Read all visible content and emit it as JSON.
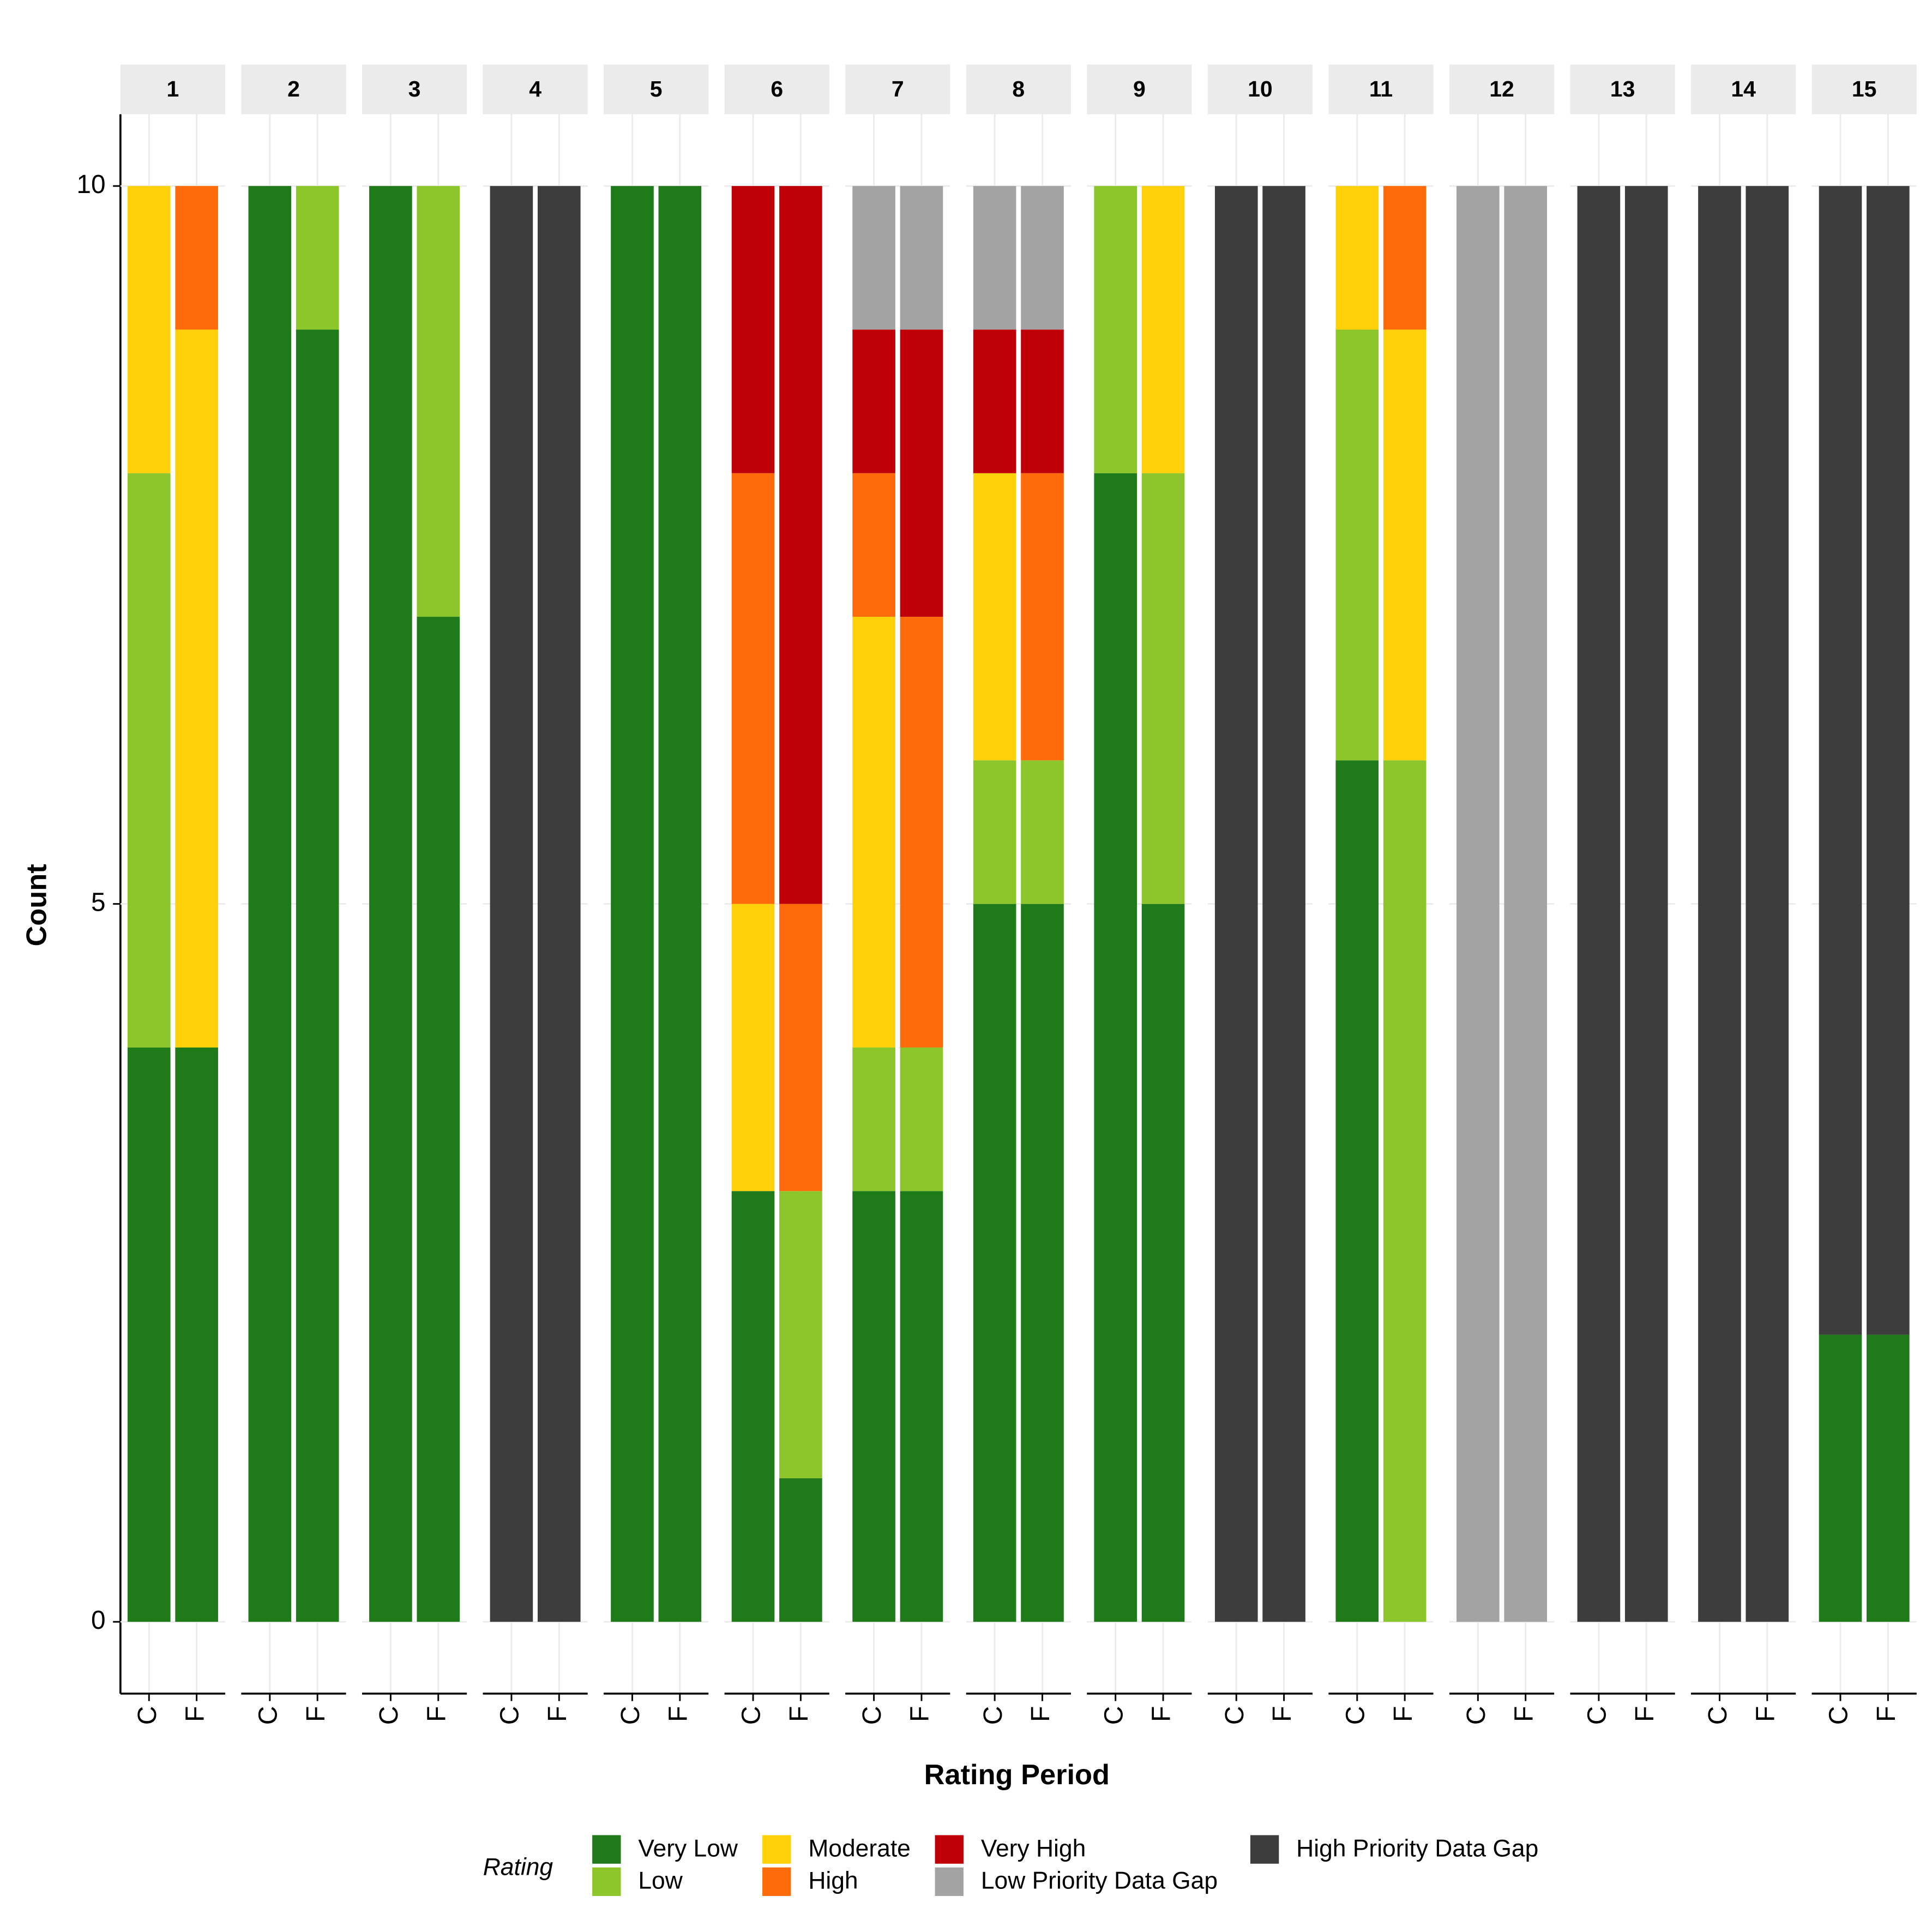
{
  "chart_data": {
    "type": "bar",
    "stacked": true,
    "facets": [
      "1",
      "2",
      "3",
      "4",
      "5",
      "6",
      "7",
      "8",
      "9",
      "10",
      "11",
      "12",
      "13",
      "14",
      "15"
    ],
    "categories": [
      "C",
      "F"
    ],
    "x_label": "Rating Period",
    "y_label": "Count",
    "legend_title": "Rating",
    "ylim": [
      -0.5,
      10.5
    ],
    "yticks": [
      0,
      5,
      10
    ],
    "grid": true,
    "legend_position": "bottom",
    "series": [
      {
        "name": "Very Low",
        "color": "#1f7a1a",
        "values": [
          [
            4,
            4
          ],
          [
            10,
            9
          ],
          [
            10,
            7
          ],
          [
            0,
            0
          ],
          [
            10,
            10
          ],
          [
            3,
            1
          ],
          [
            3,
            3
          ],
          [
            5,
            5
          ],
          [
            8,
            5
          ],
          [
            0,
            0
          ],
          [
            6,
            0
          ],
          [
            0,
            0
          ],
          [
            0,
            0
          ],
          [
            0,
            0
          ],
          [
            2,
            2
          ]
        ]
      },
      {
        "name": "Low",
        "color": "#8cc62a",
        "values": [
          [
            4,
            0
          ],
          [
            0,
            1
          ],
          [
            0,
            3
          ],
          [
            0,
            0
          ],
          [
            0,
            0
          ],
          [
            0,
            2
          ],
          [
            1,
            1
          ],
          [
            1,
            1
          ],
          [
            2,
            3
          ],
          [
            0,
            0
          ],
          [
            3,
            6
          ],
          [
            0,
            0
          ],
          [
            0,
            0
          ],
          [
            0,
            0
          ],
          [
            0,
            0
          ]
        ]
      },
      {
        "name": "Moderate",
        "color": "#ffd10a",
        "values": [
          [
            2,
            5
          ],
          [
            0,
            0
          ],
          [
            0,
            0
          ],
          [
            0,
            0
          ],
          [
            0,
            0
          ],
          [
            2,
            0
          ],
          [
            3,
            0
          ],
          [
            2,
            0
          ],
          [
            0,
            2
          ],
          [
            0,
            0
          ],
          [
            1,
            3
          ],
          [
            0,
            0
          ],
          [
            0,
            0
          ],
          [
            0,
            0
          ],
          [
            0,
            0
          ]
        ]
      },
      {
        "name": "High",
        "color": "#ff6a0a",
        "values": [
          [
            0,
            1
          ],
          [
            0,
            0
          ],
          [
            0,
            0
          ],
          [
            0,
            0
          ],
          [
            0,
            0
          ],
          [
            3,
            2
          ],
          [
            1,
            3
          ],
          [
            0,
            2
          ],
          [
            0,
            0
          ],
          [
            0,
            0
          ],
          [
            0,
            1
          ],
          [
            0,
            0
          ],
          [
            0,
            0
          ],
          [
            0,
            0
          ],
          [
            0,
            0
          ]
        ]
      },
      {
        "name": "Very High",
        "color": "#c00008",
        "values": [
          [
            0,
            0
          ],
          [
            0,
            0
          ],
          [
            0,
            0
          ],
          [
            0,
            0
          ],
          [
            0,
            0
          ],
          [
            2,
            5
          ],
          [
            1,
            2
          ],
          [
            1,
            1
          ],
          [
            0,
            0
          ],
          [
            0,
            0
          ],
          [
            0,
            0
          ],
          [
            0,
            0
          ],
          [
            0,
            0
          ],
          [
            0,
            0
          ],
          [
            0,
            0
          ]
        ]
      },
      {
        "name": "Low Priority Data Gap",
        "color": "#a3a3a3",
        "values": [
          [
            0,
            0
          ],
          [
            0,
            0
          ],
          [
            0,
            0
          ],
          [
            0,
            0
          ],
          [
            0,
            0
          ],
          [
            0,
            0
          ],
          [
            1,
            1
          ],
          [
            1,
            1
          ],
          [
            0,
            0
          ],
          [
            0,
            0
          ],
          [
            0,
            0
          ],
          [
            10,
            10
          ],
          [
            0,
            0
          ],
          [
            0,
            0
          ],
          [
            0,
            0
          ]
        ]
      },
      {
        "name": "High Priority Data Gap",
        "color": "#3d3d3d",
        "values": [
          [
            0,
            0
          ],
          [
            0,
            0
          ],
          [
            0,
            0
          ],
          [
            10,
            10
          ],
          [
            0,
            0
          ],
          [
            0,
            0
          ],
          [
            0,
            0
          ],
          [
            0,
            0
          ],
          [
            0,
            0
          ],
          [
            10,
            10
          ],
          [
            0,
            0
          ],
          [
            0,
            0
          ],
          [
            10,
            10
          ],
          [
            10,
            10
          ],
          [
            8,
            8
          ]
        ]
      }
    ]
  }
}
